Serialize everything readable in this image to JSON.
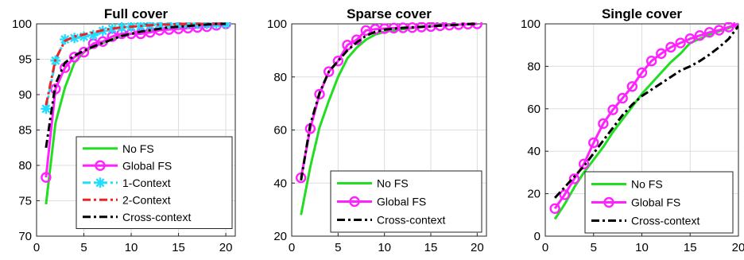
{
  "chart_data": [
    {
      "type": "line",
      "title": "Full cover",
      "xlabel": "",
      "ylabel": "",
      "xlim": [
        0,
        21
      ],
      "ylim": [
        70,
        100
      ],
      "xticks": [
        0,
        5,
        10,
        15,
        20
      ],
      "yticks": [
        70,
        75,
        80,
        85,
        90,
        95,
        100
      ],
      "grid": true,
      "legend_position": "bottom-right",
      "series": [
        {
          "name": "No FS",
          "color": "#22dd22",
          "dash": "solid",
          "marker": "none",
          "x": [
            1,
            2,
            3,
            4,
            5,
            6,
            7,
            8,
            9,
            10,
            11,
            12,
            13,
            14,
            15,
            16,
            17,
            18,
            19,
            20
          ],
          "y": [
            74.5,
            86,
            91,
            94.5,
            96,
            96.8,
            97.3,
            97.8,
            98.3,
            98.6,
            98.8,
            99,
            99.1,
            99.3,
            99.4,
            99.5,
            99.6,
            99.7,
            99.8,
            100
          ]
        },
        {
          "name": "Global FS",
          "color": "#ff22ff",
          "dash": "solid",
          "marker": "circle",
          "x": [
            1,
            2,
            3,
            4,
            5,
            6,
            7,
            8,
            9,
            10,
            11,
            12,
            13,
            14,
            15,
            16,
            17,
            18,
            19,
            20
          ],
          "y": [
            78.3,
            90.8,
            93.8,
            95.3,
            96,
            97.2,
            97.5,
            98.2,
            98.6,
            98.6,
            98.6,
            98.8,
            99.1,
            99.2,
            99.3,
            99.4,
            99.5,
            99.6,
            99.8,
            100
          ]
        },
        {
          "name": "1-Context",
          "color": "#22ddff",
          "dash": "dashdot",
          "marker": "star",
          "x": [
            1,
            2,
            3,
            4,
            5,
            6,
            7,
            8,
            9,
            10,
            11,
            12,
            13,
            14,
            15,
            16,
            17,
            18,
            19,
            20
          ],
          "y": [
            88,
            94.8,
            97.8,
            98,
            98.2,
            98.4,
            99,
            99.3,
            99.5,
            99.6,
            99.7,
            99.8,
            99.9,
            100,
            100,
            100,
            100,
            100,
            100,
            100
          ]
        },
        {
          "name": "2-Context",
          "color": "#ee2222",
          "dash": "dashdot",
          "marker": "none",
          "x": [
            1,
            2,
            3,
            4,
            5,
            6,
            7,
            8,
            9,
            10,
            11,
            12,
            13,
            14,
            15,
            16,
            17,
            18,
            19,
            20
          ],
          "y": [
            88.5,
            95,
            97.6,
            98.2,
            98.5,
            98.8,
            99.1,
            99.3,
            99.5,
            99.6,
            99.7,
            99.8,
            99.9,
            99.9,
            100,
            100,
            100,
            100,
            100,
            100
          ]
        },
        {
          "name": "Cross-context",
          "color": "#000000",
          "dash": "dashdot",
          "marker": "none",
          "x": [
            1,
            2,
            3,
            4,
            5,
            6,
            7,
            8,
            9,
            10,
            11,
            12,
            13,
            14,
            15,
            16,
            17,
            18,
            19,
            20
          ],
          "y": [
            82.5,
            91.5,
            94.5,
            95.5,
            96.2,
            96.8,
            97.3,
            97.8,
            98.3,
            98.6,
            98.9,
            99.1,
            99.3,
            99.5,
            99.6,
            99.7,
            99.8,
            99.9,
            100,
            100
          ]
        }
      ]
    },
    {
      "type": "line",
      "title": "Sparse cover",
      "xlabel": "",
      "ylabel": "",
      "xlim": [
        0,
        21
      ],
      "ylim": [
        20,
        100
      ],
      "xticks": [
        0,
        5,
        10,
        15,
        20
      ],
      "yticks": [
        20,
        40,
        60,
        80,
        100
      ],
      "grid": true,
      "legend_position": "bottom-right",
      "series": [
        {
          "name": "No FS",
          "color": "#22dd22",
          "dash": "solid",
          "marker": "none",
          "x": [
            1,
            2,
            3,
            4,
            5,
            6,
            7,
            8,
            9,
            10,
            11,
            12,
            13,
            14,
            15,
            16,
            17,
            18,
            19,
            20
          ],
          "y": [
            28,
            46,
            61,
            71,
            80,
            87,
            91,
            94,
            96,
            97,
            97.5,
            98,
            98.4,
            98.8,
            99,
            99.3,
            99.5,
            99.7,
            99.9,
            100
          ]
        },
        {
          "name": "Global FS",
          "color": "#ff22ff",
          "dash": "solid",
          "marker": "circle",
          "x": [
            1,
            2,
            3,
            4,
            5,
            6,
            7,
            8,
            9,
            10,
            11,
            12,
            13,
            14,
            15,
            16,
            17,
            18,
            19,
            20
          ],
          "y": [
            42,
            60.5,
            73.5,
            82,
            86,
            92,
            94,
            97.5,
            98,
            98.2,
            98.4,
            98.5,
            98.6,
            98.8,
            99,
            99.3,
            99.5,
            99.7,
            99.9,
            100
          ]
        },
        {
          "name": "Cross-context",
          "color": "#000000",
          "dash": "dashdot",
          "marker": "none",
          "x": [
            1,
            2,
            3,
            4,
            5,
            6,
            7,
            8,
            9,
            10,
            11,
            12,
            13,
            14,
            15,
            16,
            17,
            18,
            19,
            20
          ],
          "y": [
            41,
            62,
            74,
            82,
            86,
            90,
            93,
            95.5,
            97,
            97.8,
            98.2,
            98.5,
            98.7,
            98.9,
            99.1,
            99.3,
            99.5,
            99.7,
            99.9,
            100
          ]
        }
      ]
    },
    {
      "type": "line",
      "title": "Single cover",
      "xlabel": "",
      "ylabel": "",
      "xlim": [
        0,
        20
      ],
      "ylim": [
        0,
        100
      ],
      "xticks": [
        0,
        5,
        10,
        15,
        20
      ],
      "yticks": [
        0,
        20,
        40,
        60,
        80,
        100
      ],
      "grid": true,
      "legend_position": "bottom-right",
      "series": [
        {
          "name": "No FS",
          "color": "#22dd22",
          "dash": "solid",
          "marker": "none",
          "x": [
            1,
            2,
            3,
            4,
            5,
            6,
            7,
            8,
            9,
            10,
            11,
            12,
            13,
            14,
            15,
            16,
            17,
            18,
            19,
            20
          ],
          "y": [
            8,
            15,
            23,
            30,
            36,
            42,
            49,
            55,
            61,
            67,
            72,
            77,
            82,
            86,
            91,
            93,
            95,
            96.5,
            98,
            100
          ]
        },
        {
          "name": "Global FS",
          "color": "#ff22ff",
          "dash": "solid",
          "marker": "circle",
          "x": [
            1,
            2,
            3,
            4,
            5,
            6,
            7,
            8,
            9,
            10,
            11,
            12,
            13,
            14,
            15,
            16,
            17,
            18,
            19,
            20
          ],
          "y": [
            13,
            19.5,
            27,
            34,
            44,
            53,
            59.5,
            65,
            70.5,
            77,
            82.5,
            86,
            89,
            91,
            93,
            94.5,
            96,
            97,
            98.5,
            100
          ]
        },
        {
          "name": "Cross-context",
          "color": "#000000",
          "dash": "dashdot",
          "marker": "none",
          "x": [
            1,
            2,
            3,
            4,
            5,
            6,
            7,
            8,
            9,
            10,
            11,
            12,
            13,
            14,
            15,
            16,
            17,
            18,
            19,
            20
          ],
          "y": [
            18,
            23,
            28,
            33,
            39,
            45,
            51,
            57,
            62,
            66,
            69,
            72,
            75,
            78,
            80,
            82.5,
            85.5,
            89,
            93,
            99
          ]
        }
      ]
    }
  ]
}
